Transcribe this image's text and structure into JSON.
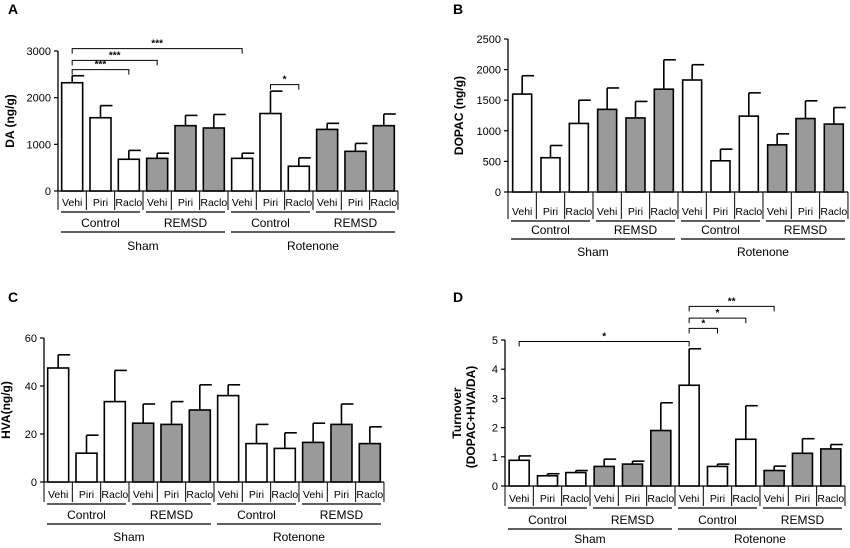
{
  "colors": {
    "white_bar": "#ffffff",
    "gray_bar": "#9a9a9a",
    "stroke": "#000000"
  },
  "chart_data": [
    {
      "panel": "A",
      "type": "bar",
      "ylabel": "DA (ng/g)",
      "ylim": [
        0,
        3000
      ],
      "yticks": [
        "0",
        "1000",
        "2000",
        "3000"
      ],
      "categories": [
        "Vehi",
        "Piri",
        "Raclo",
        "Vehi",
        "Piri",
        "Raclo",
        "Vehi",
        "Piri",
        "Raclo",
        "Vehi",
        "Piri",
        "Raclo"
      ],
      "values": [
        2320,
        1570,
        680,
        700,
        1400,
        1350,
        700,
        1660,
        530,
        1320,
        850,
        1400
      ],
      "errors": [
        150,
        260,
        190,
        110,
        220,
        290,
        110,
        480,
        180,
        130,
        170,
        250
      ],
      "fills": [
        "white",
        "white",
        "white",
        "gray",
        "gray",
        "gray",
        "white",
        "white",
        "white",
        "gray",
        "gray",
        "gray"
      ],
      "subgroups": [
        "Control",
        "REMSD",
        "Control",
        "REMSD"
      ],
      "groups": [
        "Sham",
        "Rotenone"
      ],
      "annotations": [
        {
          "from": 0,
          "to": 2,
          "y": 2600,
          "label": "***"
        },
        {
          "from": 0,
          "to": 3,
          "y": 2800,
          "label": "***"
        },
        {
          "from": 0,
          "to": 6,
          "y": 3050,
          "label": "***"
        },
        {
          "from": 7,
          "to": 8,
          "y": 2280,
          "label": "*"
        }
      ]
    },
    {
      "panel": "B",
      "type": "bar",
      "ylabel": "DOPAC (ng/g)",
      "ylim": [
        0,
        2500
      ],
      "yticks": [
        "0",
        "500",
        "1000",
        "1500",
        "2000",
        "2500"
      ],
      "categories": [
        "Vehi",
        "Piri",
        "Raclo",
        "Vehi",
        "Piri",
        "Raclo",
        "Vehi",
        "Piri",
        "Raclo",
        "Vehi",
        "Piri",
        "Raclo"
      ],
      "values": [
        1600,
        560,
        1120,
        1350,
        1210,
        1680,
        1830,
        510,
        1240,
        770,
        1200,
        1110
      ],
      "errors": [
        300,
        200,
        380,
        350,
        270,
        480,
        250,
        190,
        380,
        180,
        290,
        270
      ],
      "fills": [
        "white",
        "white",
        "white",
        "gray",
        "gray",
        "gray",
        "white",
        "white",
        "white",
        "gray",
        "gray",
        "gray"
      ],
      "subgroups": [
        "Control",
        "REMSD",
        "Control",
        "REMSD"
      ],
      "groups": [
        "Sham",
        "Rotenone"
      ],
      "annotations": []
    },
    {
      "panel": "C",
      "type": "bar",
      "ylabel": "HVA(ng/g)",
      "ylim": [
        0,
        60
      ],
      "yticks": [
        "0",
        "20",
        "40",
        "60"
      ],
      "categories": [
        "Vehi",
        "Piri",
        "Raclo",
        "Vehi",
        "Piri",
        "Raclo",
        "Vehi",
        "Piri",
        "Raclo",
        "Vehi",
        "Piri",
        "Raclo"
      ],
      "values": [
        47.5,
        12,
        33.5,
        24.5,
        24,
        30,
        36,
        16,
        14,
        16.5,
        24,
        16
      ],
      "errors": [
        5.5,
        7.5,
        13,
        8,
        9.5,
        10.5,
        4.5,
        8,
        6.5,
        8,
        8.5,
        7
      ],
      "fills": [
        "white",
        "white",
        "white",
        "gray",
        "gray",
        "gray",
        "white",
        "white",
        "white",
        "gray",
        "gray",
        "gray"
      ],
      "subgroups": [
        "Control",
        "REMSD",
        "Control",
        "REMSD"
      ],
      "groups": [
        "Sham",
        "Rotenone"
      ],
      "annotations": []
    },
    {
      "panel": "D",
      "type": "bar",
      "ylabel": "Turnover",
      "ylabel2": "(DOPAC+HVA/DA)",
      "ylim": [
        0,
        5
      ],
      "yticks": [
        "0",
        "1",
        "2",
        "3",
        "4",
        "5"
      ],
      "categories": [
        "Vehi",
        "Piri",
        "Raclo",
        "Vehi",
        "Piri",
        "Raclo",
        "Vehi",
        "Piri",
        "Raclo",
        "Vehi",
        "Piri",
        "Raclo"
      ],
      "values": [
        0.88,
        0.35,
        0.46,
        0.67,
        0.75,
        1.9,
        3.45,
        0.67,
        1.6,
        0.53,
        1.12,
        1.27
      ],
      "errors": [
        0.15,
        0.07,
        0.07,
        0.25,
        0.1,
        0.95,
        1.25,
        0.08,
        1.15,
        0.15,
        0.5,
        0.15
      ],
      "fills": [
        "white",
        "white",
        "white",
        "gray",
        "gray",
        "gray",
        "white",
        "white",
        "white",
        "gray",
        "gray",
        "gray"
      ],
      "subgroups": [
        "Control",
        "REMSD",
        "Control",
        "REMSD"
      ],
      "groups": [
        "Sham",
        "Rotenone"
      ],
      "annotations": [
        {
          "from": 0,
          "to": 6,
          "y": 4.95,
          "label": "*"
        },
        {
          "from": 6,
          "to": 7,
          "y": 5.4,
          "label": "*"
        },
        {
          "from": 6,
          "to": 8,
          "y": 5.75,
          "label": "*"
        },
        {
          "from": 6,
          "to": 9,
          "y": 6.15,
          "label": "**"
        }
      ]
    }
  ]
}
